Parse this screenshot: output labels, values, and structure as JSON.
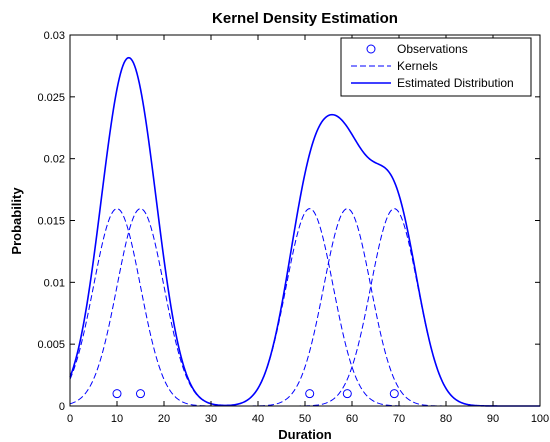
{
  "chart_data": {
    "type": "line",
    "title": "Kernel Density Estimation",
    "xlabel": "Duration",
    "ylabel": "Probability",
    "xlim": [
      0,
      100
    ],
    "ylim": [
      0,
      0.03
    ],
    "x_ticks": [
      0,
      10,
      20,
      30,
      40,
      50,
      60,
      70,
      80,
      90,
      100
    ],
    "y_ticks": [
      0,
      0.005,
      0.01,
      0.015,
      0.02,
      0.025,
      0.03
    ],
    "y_tick_labels": [
      "0",
      "0.005",
      "0.01",
      "0.015",
      "0.02",
      "0.025",
      "0.03"
    ],
    "grid": false,
    "legend_position": "top-right",
    "series": [
      {
        "name": "Observations",
        "style": "circle-markers",
        "color": "#0000ff",
        "x": [
          10,
          15,
          51,
          59,
          69
        ],
        "y": [
          0.001,
          0.001,
          0.001,
          0.001,
          0.001
        ]
      },
      {
        "name": "Kernels",
        "style": "dashed",
        "color": "#0000ff",
        "kernel": "gaussian",
        "centers": [
          10,
          15,
          51,
          59,
          69
        ],
        "bandwidth": 5.0,
        "weight": 0.2
      },
      {
        "name": "Estimated Distribution",
        "style": "solid",
        "color": "#0000ff",
        "kernel": "gaussian",
        "centers": [
          10,
          15,
          51,
          59,
          69
        ],
        "bandwidth": 5.0
      }
    ]
  }
}
